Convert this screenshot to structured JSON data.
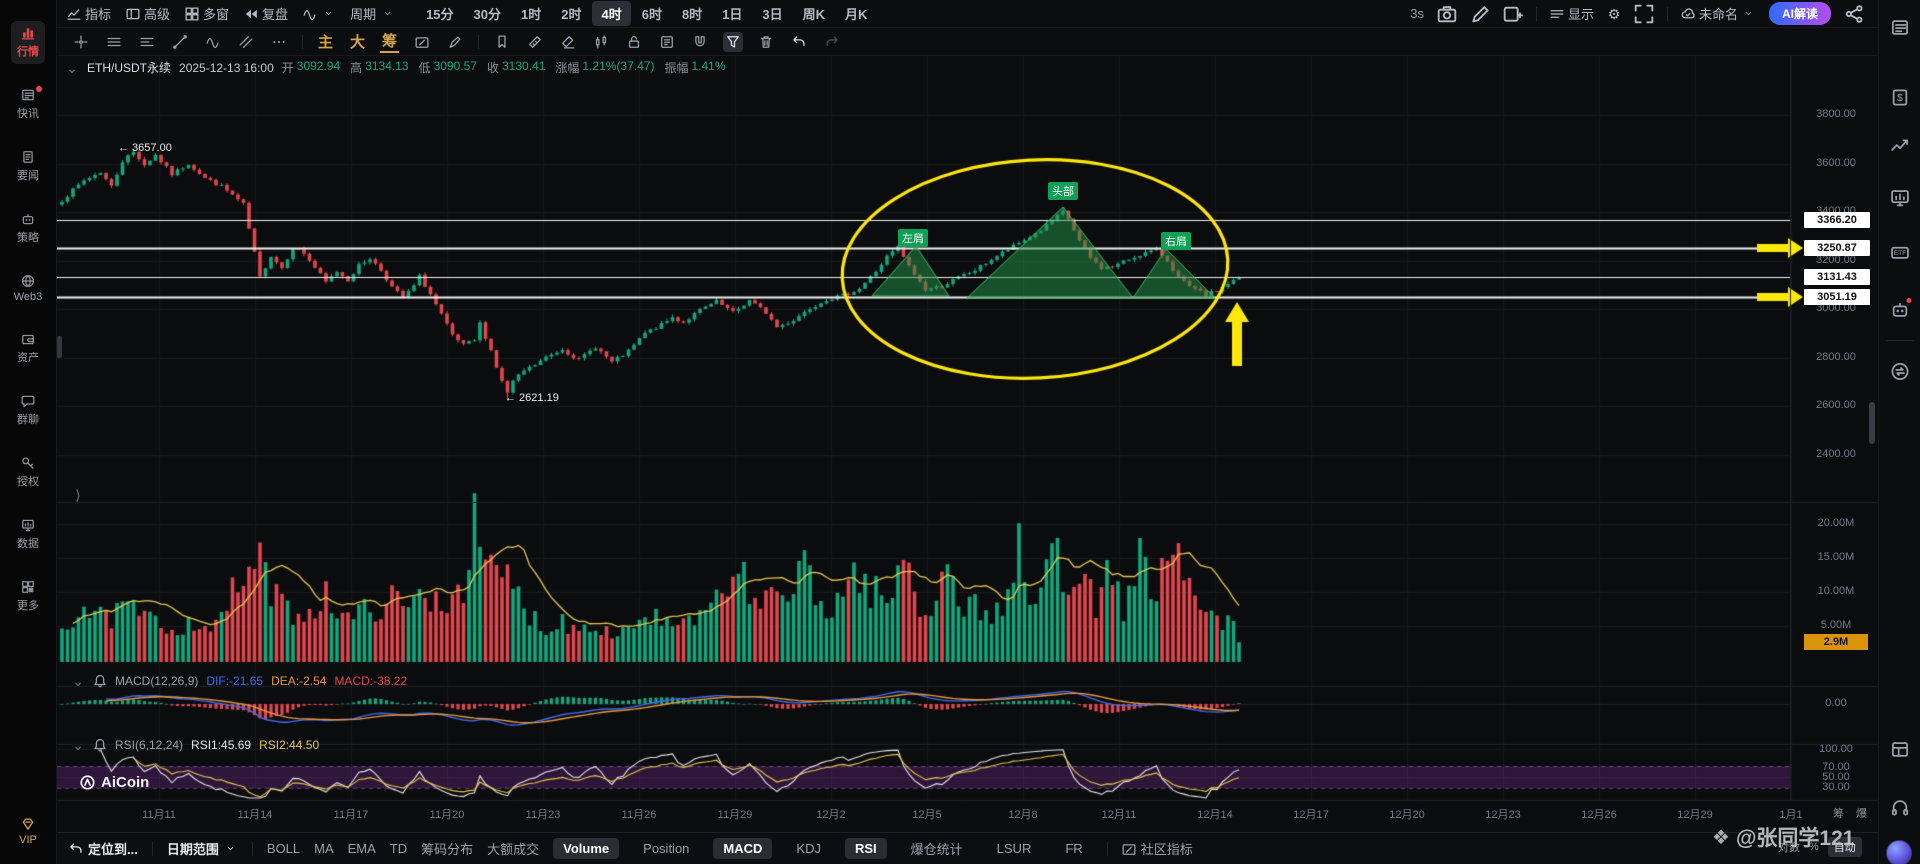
{
  "topbar": {
    "menu_labels": [
      "指标",
      "高级",
      "多窗",
      "复盘"
    ],
    "period_menu": "周期",
    "periods": [
      "15分",
      "30分",
      "1时",
      "2时",
      "4时",
      "6时",
      "8时",
      "1日",
      "3日",
      "周K",
      "月K"
    ],
    "active_period": "4时",
    "refresh": "3s",
    "display_label": "显示",
    "layout_name": "未命名",
    "ai_button": "AI解读"
  },
  "draw_gold": [
    "主",
    "大",
    "筹"
  ],
  "sidebar": {
    "items": [
      {
        "label": "行情",
        "active": true
      },
      {
        "label": "快讯",
        "badge": true
      },
      {
        "label": "要闻"
      },
      {
        "label": "策略"
      },
      {
        "label": "Web3"
      },
      {
        "label": "资产"
      },
      {
        "label": "群聊"
      },
      {
        "label": "授权"
      },
      {
        "label": "数据"
      },
      {
        "label": "更多"
      }
    ],
    "vip": "VIP"
  },
  "info_bar": {
    "symbol": "ETH/USDT永续",
    "time": "2025-12-13 16:00",
    "fields": [
      {
        "label": "开",
        "value": "3092.94"
      },
      {
        "label": "高",
        "value": "3134.13"
      },
      {
        "label": "低",
        "value": "3090.57"
      },
      {
        "label": "收",
        "value": "3130.41"
      },
      {
        "label": "涨幅",
        "value": "1.21%(37.47)"
      },
      {
        "label": "振幅",
        "value": "1.41%"
      }
    ]
  },
  "chart_data": {
    "type": "candlestick",
    "timeframe": "4h",
    "price_axis_ticks": [
      "3800.00",
      "3600.00",
      "3400.00",
      "3200.00",
      "3000.00",
      "2800.00",
      "2600.00",
      "2400.00"
    ],
    "hlines": [
      {
        "price": 3366.2,
        "label": "3366.20",
        "strong": false,
        "arrow": false
      },
      {
        "price": 3250.87,
        "label": "3250.87",
        "strong": true,
        "arrow": true
      },
      {
        "price": 3131.43,
        "label": "3131.43",
        "strong": false,
        "arrow": false
      },
      {
        "price": 3051.19,
        "label": "3051.19",
        "strong": true,
        "arrow": true
      }
    ],
    "annotations": {
      "peak_label": "← 3657.00",
      "trough_label": "← 2621.19",
      "head": "头部",
      "left_shoulder": "左肩",
      "right_shoulder": "右肩"
    },
    "dates": [
      "11月11",
      "11月14",
      "11月17",
      "11月20",
      "11月23",
      "11月26",
      "11月29",
      "12月2",
      "12月5",
      "12月8",
      "12月11",
      "12月14",
      "12月17",
      "12月20",
      "12月23",
      "12月26",
      "12月29",
      "1月1"
    ],
    "volume_axis_ticks": [
      "20.00M",
      "15.00M",
      "10.00M",
      "5.00M"
    ],
    "volume_current": "2.9M",
    "macd": {
      "title": "MACD(12,26,9)",
      "dif": "DIF:-21.65",
      "dea": "DEA:-2.54",
      "macd": "MACD:-38.22",
      "zero_tick": "0.00"
    },
    "rsi": {
      "title": "RSI(6,12,24)",
      "rsi1": "RSI1:45.69",
      "rsi2": "RSI2:44.50",
      "ticks": [
        "100.00",
        "70.00",
        "50.00",
        "30.00"
      ]
    },
    "candle_count": 215,
    "peak": {
      "index": 13,
      "price": 3657.0
    },
    "trough": {
      "index": 81,
      "price": 2621.19
    },
    "last_close": 3130.41,
    "price_anchors": [
      [
        0,
        3450
      ],
      [
        4,
        3530
      ],
      [
        7,
        3565
      ],
      [
        9,
        3505
      ],
      [
        11,
        3610
      ],
      [
        13,
        3650
      ],
      [
        15,
        3595
      ],
      [
        17,
        3635
      ],
      [
        20,
        3555
      ],
      [
        23,
        3600
      ],
      [
        26,
        3540
      ],
      [
        29,
        3505
      ],
      [
        31,
        3470
      ],
      [
        33,
        3430
      ],
      [
        34,
        3330
      ],
      [
        36,
        3130
      ],
      [
        38,
        3220
      ],
      [
        40,
        3170
      ],
      [
        42,
        3255
      ],
      [
        44,
        3230
      ],
      [
        46,
        3170
      ],
      [
        48,
        3110
      ],
      [
        50,
        3155
      ],
      [
        52,
        3120
      ],
      [
        54,
        3180
      ],
      [
        56,
        3210
      ],
      [
        58,
        3160
      ],
      [
        60,
        3090
      ],
      [
        62,
        3045
      ],
      [
        64,
        3095
      ],
      [
        65,
        3135
      ],
      [
        67,
        3060
      ],
      [
        69,
        2975
      ],
      [
        71,
        2890
      ],
      [
        73,
        2850
      ],
      [
        75,
        2870
      ],
      [
        76,
        2940
      ],
      [
        78,
        2830
      ],
      [
        79,
        2760
      ],
      [
        80,
        2700
      ],
      [
        81,
        2655
      ],
      [
        82,
        2700
      ],
      [
        84,
        2745
      ],
      [
        86,
        2770
      ],
      [
        88,
        2800
      ],
      [
        91,
        2835
      ],
      [
        94,
        2790
      ],
      [
        97,
        2845
      ],
      [
        100,
        2780
      ],
      [
        103,
        2825
      ],
      [
        106,
        2900
      ],
      [
        109,
        2935
      ],
      [
        111,
        2965
      ],
      [
        113,
        2945
      ],
      [
        116,
        2995
      ],
      [
        119,
        3030
      ],
      [
        122,
        2985
      ],
      [
        125,
        3035
      ],
      [
        128,
        2985
      ],
      [
        130,
        2925
      ],
      [
        133,
        2955
      ],
      [
        136,
        3005
      ],
      [
        139,
        3040
      ],
      [
        142,
        3055
      ],
      [
        145,
        3085
      ],
      [
        148,
        3155
      ],
      [
        150,
        3215
      ],
      [
        152,
        3255
      ],
      [
        154,
        3175
      ],
      [
        157,
        3080
      ],
      [
        160,
        3095
      ],
      [
        163,
        3130
      ],
      [
        166,
        3160
      ],
      [
        169,
        3205
      ],
      [
        172,
        3245
      ],
      [
        175,
        3285
      ],
      [
        178,
        3325
      ],
      [
        180,
        3365
      ],
      [
        182,
        3400
      ],
      [
        183,
        3370
      ],
      [
        185,
        3280
      ],
      [
        187,
        3210
      ],
      [
        189,
        3170
      ],
      [
        191,
        3175
      ],
      [
        193,
        3195
      ],
      [
        196,
        3225
      ],
      [
        199,
        3245
      ],
      [
        201,
        3200
      ],
      [
        203,
        3130
      ],
      [
        205,
        3090
      ],
      [
        208,
        3058
      ],
      [
        210,
        3075
      ],
      [
        212,
        3105
      ],
      [
        214,
        3130.41
      ]
    ],
    "volume_anchors": [
      [
        0,
        5
      ],
      [
        4,
        8
      ],
      [
        8,
        6
      ],
      [
        12,
        8
      ],
      [
        16,
        6
      ],
      [
        20,
        5
      ],
      [
        24,
        6
      ],
      [
        28,
        5
      ],
      [
        33,
        13
      ],
      [
        36,
        14
      ],
      [
        40,
        8
      ],
      [
        44,
        7
      ],
      [
        48,
        10
      ],
      [
        52,
        6
      ],
      [
        56,
        8
      ],
      [
        60,
        9
      ],
      [
        63,
        8
      ],
      [
        66,
        10
      ],
      [
        70,
        9
      ],
      [
        73,
        12
      ],
      [
        75,
        19.5
      ],
      [
        77,
        13
      ],
      [
        80,
        13
      ],
      [
        82,
        11
      ],
      [
        85,
        7
      ],
      [
        88,
        5
      ],
      [
        91,
        6
      ],
      [
        94,
        5
      ],
      [
        97,
        6
      ],
      [
        100,
        4
      ],
      [
        103,
        5
      ],
      [
        106,
        7
      ],
      [
        109,
        6
      ],
      [
        112,
        5
      ],
      [
        115,
        6
      ],
      [
        118,
        8
      ],
      [
        121,
        9
      ],
      [
        123,
        18
      ],
      [
        125,
        7
      ],
      [
        127,
        9
      ],
      [
        130,
        12
      ],
      [
        133,
        8
      ],
      [
        135,
        16
      ],
      [
        137,
        9
      ],
      [
        140,
        8
      ],
      [
        144,
        13
      ],
      [
        148,
        10
      ],
      [
        151,
        9
      ],
      [
        153,
        16
      ],
      [
        156,
        8
      ],
      [
        158,
        7
      ],
      [
        160,
        16
      ],
      [
        163,
        9
      ],
      [
        166,
        8
      ],
      [
        169,
        7
      ],
      [
        172,
        9
      ],
      [
        174,
        16
      ],
      [
        176,
        8
      ],
      [
        178,
        11
      ],
      [
        180,
        17
      ],
      [
        182,
        13
      ],
      [
        184,
        12
      ],
      [
        186,
        17
      ],
      [
        188,
        9
      ],
      [
        190,
        12
      ],
      [
        193,
        8
      ],
      [
        196,
        15
      ],
      [
        199,
        11
      ],
      [
        203,
        15
      ],
      [
        205,
        10
      ],
      [
        208,
        7
      ],
      [
        211,
        6
      ],
      [
        213,
        5
      ],
      [
        214,
        2.9
      ]
    ]
  },
  "bottom_bar": {
    "locate": "定位到...",
    "range": "日期范围",
    "indicators": [
      "BOLL",
      "MA",
      "EMA",
      "TD",
      "筹码分布",
      "大额成交"
    ],
    "panes": [
      {
        "label": "Volume",
        "active": true
      },
      {
        "label": "Position",
        "active": false
      },
      {
        "label": "MACD",
        "active": true
      },
      {
        "label": "KDJ",
        "active": false
      },
      {
        "label": "RSI",
        "active": true
      },
      {
        "label": "爆仓统计",
        "active": false
      },
      {
        "label": "LSUR",
        "active": false
      },
      {
        "label": "FR",
        "active": false
      }
    ],
    "community": "社区指标",
    "scale_options": [
      "对数",
      "%"
    ],
    "scale_active": "自动",
    "mini_toggles": [
      "筹",
      "爆"
    ]
  },
  "right_strip": {
    "etf_label": "ETF"
  },
  "watermark": {
    "handle": "@张同学121",
    "logo": "AiCoin"
  },
  "colors": {
    "up": "#0fa97e",
    "down": "#e2464e",
    "annotation": "#ffe70a",
    "dif": "#3e6bf2",
    "dea": "#e8973c",
    "vol_ma": "#e6c84a",
    "gold": "#d2a54b"
  }
}
